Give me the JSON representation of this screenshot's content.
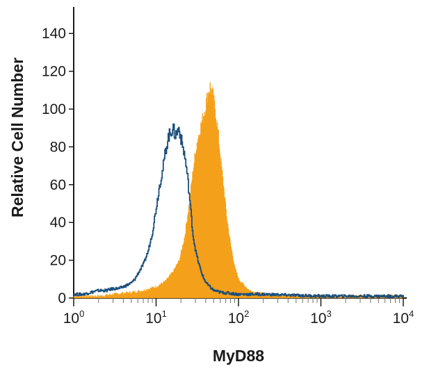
{
  "chart_data": {
    "type": "area",
    "title": "",
    "xlabel": "MyD88",
    "ylabel": "Relative Cell Number",
    "x_scale": "log",
    "xlim": [
      1,
      10000
    ],
    "ylim": [
      0,
      150
    ],
    "x_ticks": [
      {
        "base": "10",
        "exp": "0",
        "value": 1
      },
      {
        "base": "10",
        "exp": "1",
        "value": 10
      },
      {
        "base": "10",
        "exp": "2",
        "value": 100
      },
      {
        "base": "10",
        "exp": "3",
        "value": 1000
      },
      {
        "base": "10",
        "exp": "4",
        "value": 10000
      }
    ],
    "y_ticks": [
      0,
      20,
      40,
      60,
      80,
      100,
      120,
      140
    ],
    "grid": false,
    "legend": "none",
    "series": [
      {
        "style": "filled",
        "color": "#f5a01a",
        "x": [
          1,
          2,
          3,
          5,
          7,
          10,
          13,
          16,
          19,
          22,
          25,
          28,
          31,
          35,
          39,
          42,
          45,
          48,
          52,
          56,
          60,
          66,
          72,
          80,
          90,
          100,
          115,
          135,
          160,
          200,
          300,
          600,
          1000,
          3000,
          10000
        ],
        "y": [
          1,
          1,
          2,
          3,
          4,
          6,
          9,
          14,
          20,
          32,
          50,
          68,
          82,
          92,
          100,
          108,
          112,
          108,
          100,
          88,
          75,
          58,
          42,
          28,
          16,
          10,
          7,
          4,
          3,
          2,
          1.5,
          1,
          1,
          1,
          1
        ]
      },
      {
        "style": "line",
        "color": "#1c4f7c",
        "x": [
          1,
          1.3,
          1.6,
          2,
          2.5,
          3,
          3.5,
          4,
          4.5,
          5,
          5.5,
          6,
          7,
          8,
          9,
          10,
          11,
          12,
          13,
          14,
          15,
          16,
          17,
          18,
          19,
          20,
          21,
          22,
          23,
          24,
          25,
          26,
          27,
          28,
          30,
          32,
          35,
          38,
          42,
          50,
          60,
          100,
          200,
          1000,
          10000
        ],
        "y": [
          2,
          2,
          3,
          4,
          4,
          5,
          5,
          6,
          7,
          8,
          10,
          13,
          18,
          25,
          35,
          48,
          60,
          68,
          78,
          85,
          88,
          90,
          86,
          88,
          90,
          84,
          80,
          76,
          70,
          64,
          56,
          48,
          40,
          33,
          25,
          20,
          14,
          10,
          7,
          4,
          3,
          2,
          2,
          1,
          1
        ]
      }
    ]
  }
}
